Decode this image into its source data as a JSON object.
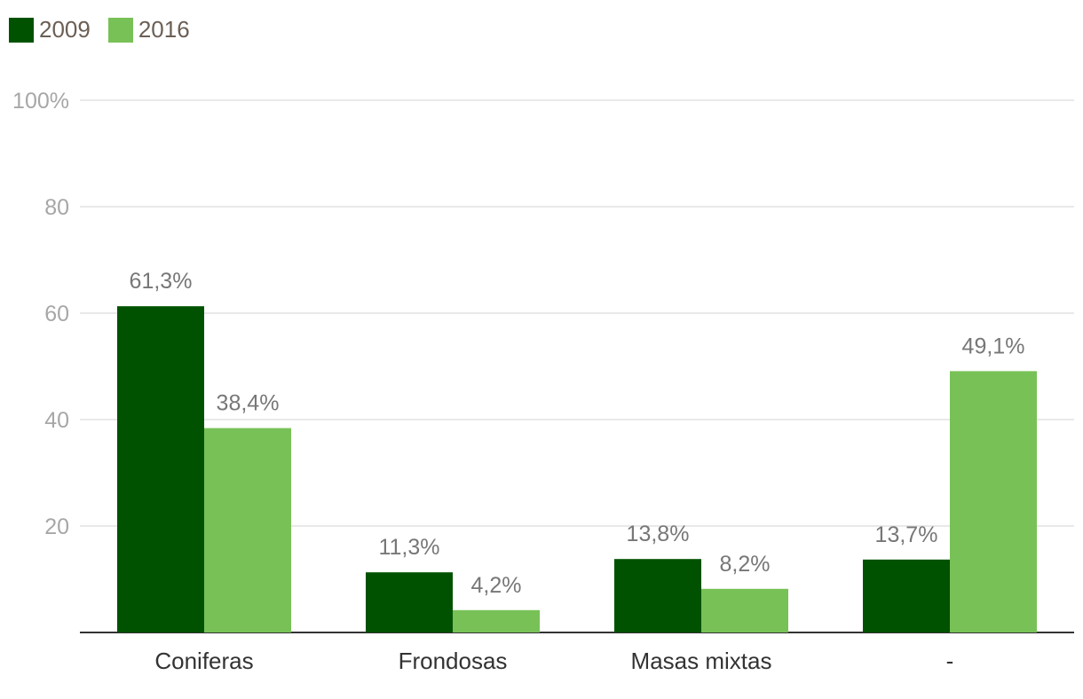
{
  "chart_data": {
    "type": "bar",
    "categories": [
      "Coniferas",
      "Frondosas",
      "Masas mixtas",
      "-"
    ],
    "series": [
      {
        "name": "2009",
        "color": "#005200",
        "values": [
          61.3,
          11.3,
          13.8,
          13.7
        ],
        "labels": [
          "61,3%",
          "11,3%",
          "13,8%",
          "13,7%"
        ]
      },
      {
        "name": "2016",
        "color": "#78c157",
        "values": [
          38.4,
          4.2,
          8.2,
          49.1
        ],
        "labels": [
          "38,4%",
          "4,2%",
          "8,2%",
          "49,1%"
        ]
      }
    ],
    "ylim": [
      0,
      100
    ],
    "yticks": [
      20,
      40,
      60,
      80,
      100
    ],
    "ytick_labels": [
      "20",
      "40",
      "60",
      "80",
      "100%"
    ],
    "grid": true,
    "legend_position": "top-left"
  }
}
